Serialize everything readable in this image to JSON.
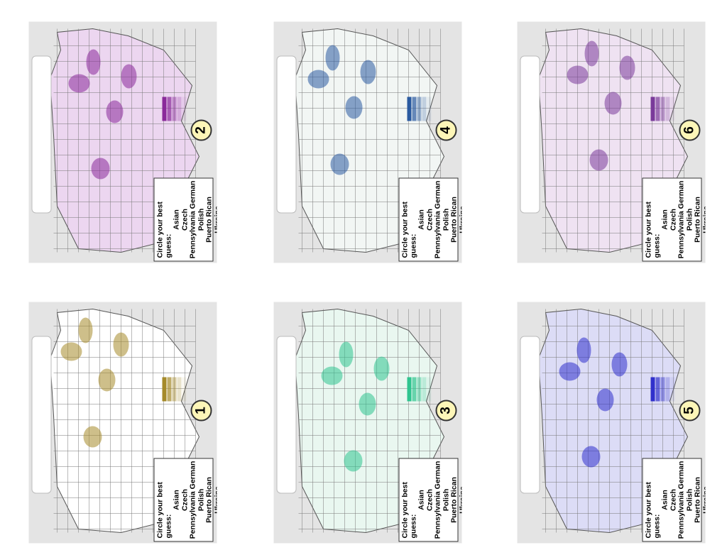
{
  "panels": [
    {
      "number": "1",
      "prompt": "Circle your best guess:",
      "options": [
        "Asian",
        "Czech",
        "Pennsylvania German",
        "Polish",
        "Puerto Rican",
        "Ukraine"
      ]
    },
    {
      "number": "2",
      "prompt": "Circle your best guess:",
      "options": [
        "Asian",
        "Czech",
        "Pennsylvania German",
        "Polish",
        "Puerto Rican",
        "Ukraine"
      ]
    },
    {
      "number": "3",
      "prompt": "Circle your best guess:",
      "options": [
        "Asian",
        "Czech",
        "Pennsylvania German",
        "Polish",
        "Puerto Rican",
        "Ukraine"
      ]
    },
    {
      "number": "4",
      "prompt": "Circle your best guess:",
      "options": [
        "Asian",
        "Czech",
        "Pennsylvania German",
        "Polish",
        "Puerto Rican",
        "Ukraine"
      ]
    },
    {
      "number": "5",
      "prompt": "Circle your best guess:",
      "options": [
        "Asian",
        "Czech",
        "Pennsylvania German",
        "Polish",
        "Puerto Rican",
        "Ukraine"
      ]
    },
    {
      "number": "6",
      "prompt": "Circle your best guess:",
      "options": [
        "Asian",
        "Czech",
        "Pennsylvania German",
        "Polish",
        "Puerto Rican",
        "Ukraine"
      ]
    }
  ]
}
